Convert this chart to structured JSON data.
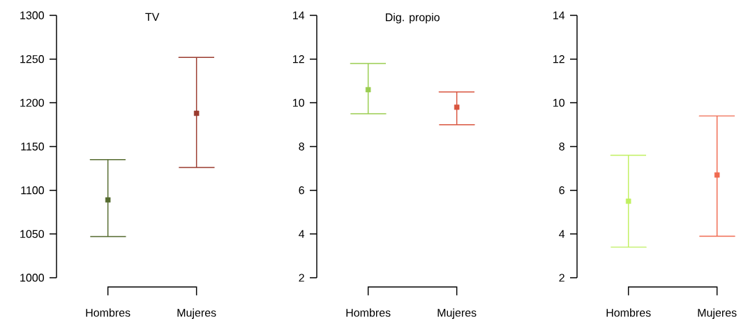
{
  "chart_data": [
    {
      "type": "scatter",
      "title": "TV",
      "categories": [
        "Hombres",
        "Mujeres"
      ],
      "values": [
        1089,
        1188
      ],
      "errors": [
        [
          1047,
          1135
        ],
        [
          1126,
          1252
        ]
      ],
      "colors": [
        "#556b2f",
        "#9a3b2f"
      ],
      "marker": "square",
      "ylim": [
        1000,
        1300
      ],
      "yticks": [
        1000,
        1050,
        1100,
        1150,
        1200,
        1250,
        1300
      ]
    },
    {
      "type": "scatter",
      "title": "Dig. propio",
      "categories": [
        "Hombres",
        "Mujeres"
      ],
      "values": [
        10.6,
        9.8
      ],
      "errors": [
        [
          9.5,
          11.8
        ],
        [
          9.0,
          10.5
        ]
      ],
      "colors": [
        "#9acd50",
        "#d9553f"
      ],
      "marker": "square",
      "ylim": [
        2,
        14
      ],
      "yticks": [
        2,
        4,
        6,
        8,
        10,
        12,
        14
      ]
    },
    {
      "type": "scatter",
      "categories": [
        "Hombres",
        "Mujeres"
      ],
      "values": [
        5.5,
        6.7
      ],
      "errors": [
        [
          3.4,
          7.6
        ],
        [
          3.9,
          9.4
        ]
      ],
      "colors": [
        "#c0f060",
        "#f06a50"
      ],
      "marker": "square",
      "ylim": [
        2,
        14
      ],
      "yticks": [
        2,
        4,
        6,
        8,
        10,
        12,
        14
      ]
    }
  ]
}
